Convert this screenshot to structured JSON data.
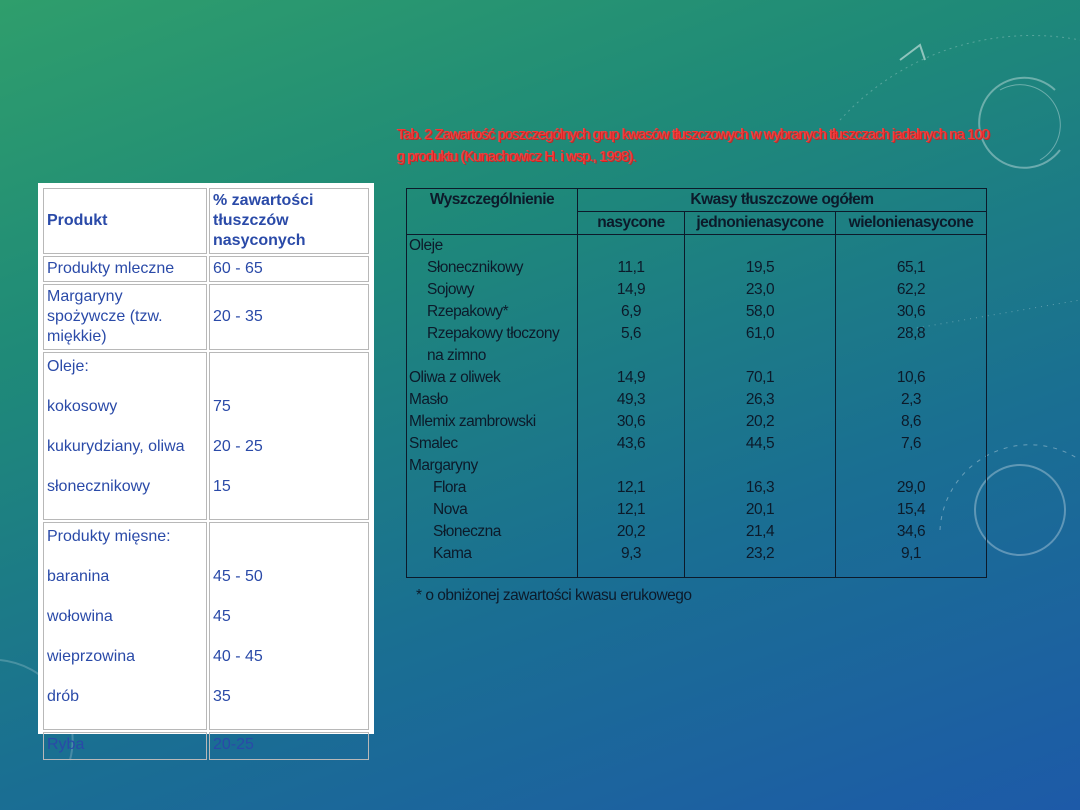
{
  "left_table": {
    "header": {
      "product": "Produkt",
      "percent": "% zawartości tłuszczów nasyconych"
    },
    "rows": [
      {
        "name": "Produkty mleczne",
        "value": "60 - 65"
      },
      {
        "name": "Margaryny spożywcze (tzw. miękkie)",
        "value": "20 - 35"
      },
      {
        "name": "Oleje:",
        "items": [
          {
            "name": "kokosowy",
            "value": "75"
          },
          {
            "name": "kukurydziany, oliwa",
            "value": "20 - 25"
          },
          {
            "name": "słonecznikowy",
            "value": "15"
          }
        ]
      },
      {
        "name": "Produkty mięsne:",
        "items": [
          {
            "name": "baranina",
            "value": "45 - 50"
          },
          {
            "name": "wołowina",
            "value": "45"
          },
          {
            "name": "wieprzowina",
            "value": "40 - 45"
          },
          {
            "name": "drób",
            "value": "35"
          }
        ]
      },
      {
        "name": "Ryba",
        "value": "20-25"
      }
    ]
  },
  "right_title": "Tab. 2 Zawartość poszczególnych grup kwasów tłuszczowych w wybranych tłuszczach jadalnych na 100 g produktu (Kunachowicz H. i wsp., 1998).",
  "right_table": {
    "col_header": "Wyszczególnienie",
    "group_header": "Kwasy tłuszczowe ogółem",
    "subheaders": [
      "nasycone",
      "jednonienasycone",
      "wielonienasycone"
    ],
    "names": [
      "Oleje",
      "Słonecznikowy",
      "Sojowy",
      "Rzepakowy*",
      "Rzepakowy tłoczony",
      "na zimno",
      "Oliwa z oliwek",
      "Masło",
      "Mlemix zambrowski",
      "Smalec",
      "Margaryny",
      "Flora",
      "Nova",
      "Słoneczna",
      "Kama"
    ],
    "indent": [
      0,
      1,
      1,
      1,
      1,
      1,
      0,
      0,
      0,
      0,
      0,
      2,
      2,
      2,
      2
    ],
    "nasycone": [
      "",
      "11,1",
      "14,9",
      "6,9",
      "5,6",
      "",
      "14,9",
      "49,3",
      "30,6",
      "43,6",
      "",
      "12,1",
      "12,1",
      "20,2",
      "9,3"
    ],
    "jednonienasycone": [
      "",
      "19,5",
      "23,0",
      "58,0",
      "61,0",
      "",
      "70,1",
      "26,3",
      "20,2",
      "44,5",
      "",
      "16,3",
      "20,1",
      "21,4",
      "23,2"
    ],
    "wielonienasycone": [
      "",
      "65,1",
      "62,2",
      "30,6",
      "28,8",
      "",
      "10,6",
      "2,3",
      "8,6",
      "7,6",
      "",
      "29,0",
      "15,4",
      "34,6",
      "9,1"
    ]
  },
  "footnote": "* o obniżonej zawartości kwasu erukowego"
}
